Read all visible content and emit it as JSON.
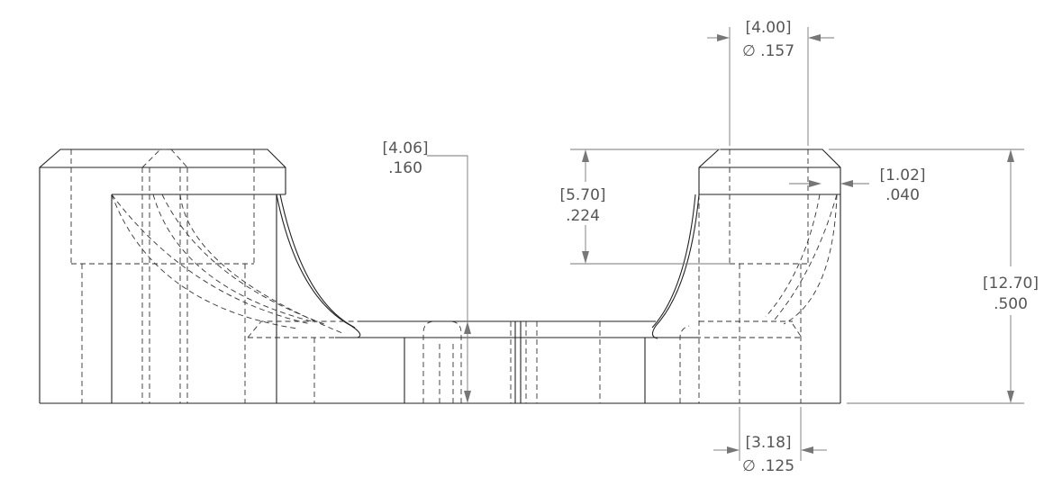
{
  "dimensions": {
    "hole_top": {
      "metric": "[4.00]",
      "imperial": "∅ .157"
    },
    "hole_bottom": {
      "metric": "[3.18]",
      "imperial": "∅ .125"
    },
    "slot_depth": {
      "metric": "[4.06]",
      "imperial": ".160"
    },
    "counterbore": {
      "metric": "[5.70]",
      "imperial": ".224"
    },
    "chamfer": {
      "metric": "[1.02]",
      "imperial": ".040"
    },
    "height": {
      "metric": "[12.70]",
      "imperial": ".500"
    }
  }
}
